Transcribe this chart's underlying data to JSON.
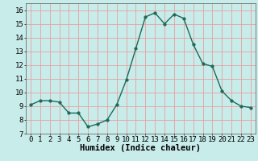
{
  "x": [
    0,
    1,
    2,
    3,
    4,
    5,
    6,
    7,
    8,
    9,
    10,
    11,
    12,
    13,
    14,
    15,
    16,
    17,
    18,
    19,
    20,
    21,
    22,
    23
  ],
  "y": [
    9.1,
    9.4,
    9.4,
    9.3,
    8.5,
    8.5,
    7.5,
    7.7,
    8.0,
    9.1,
    10.9,
    13.2,
    15.5,
    15.8,
    15.0,
    15.7,
    15.4,
    13.5,
    12.1,
    11.9,
    10.1,
    9.4,
    9.0,
    8.9
  ],
  "line_color": "#1a6b5a",
  "marker_color": "#1a6b5a",
  "bg_color": "#c8ecea",
  "grid_color": "#e8a0a0",
  "xlabel": "Humidex (Indice chaleur)",
  "ylim": [
    7,
    16.5
  ],
  "xlim": [
    -0.5,
    23.5
  ],
  "yticks": [
    7,
    8,
    9,
    10,
    11,
    12,
    13,
    14,
    15,
    16
  ],
  "xticks": [
    0,
    1,
    2,
    3,
    4,
    5,
    6,
    7,
    8,
    9,
    10,
    11,
    12,
    13,
    14,
    15,
    16,
    17,
    18,
    19,
    20,
    21,
    22,
    23
  ],
  "xlabel_fontsize": 7.5,
  "tick_fontsize": 6.5,
  "line_width": 1.0,
  "marker_size": 2.5
}
